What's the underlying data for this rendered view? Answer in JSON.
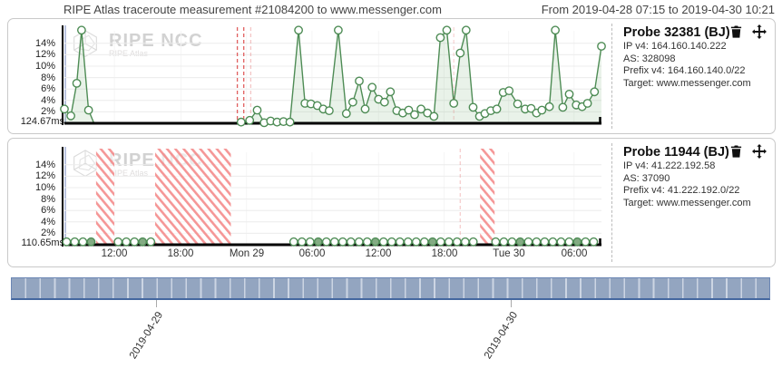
{
  "header": {
    "title": "RIPE Atlas traceroute measurement #21084200 to www.messenger.com",
    "range": "From 2019-04-28 07:15 to 2019-04-30 10:21"
  },
  "watermark": {
    "brand": "RIPE NCC",
    "sub": "RIPE Atlas"
  },
  "colors": {
    "series_green": "#4e8c55",
    "area_green": "#e3f0e3",
    "gap_hatch_red": "#f27d7d",
    "gap_line_red": "#e05f5f",
    "bar_fill": "#93a5c0",
    "bar_separator": "#ccd5e3",
    "bar_border": "#44679f",
    "panel_border": "#c9c9c9"
  },
  "panel_icons": [
    "trash-icon",
    "move-icon"
  ],
  "x_axis": {
    "ticks": [
      {
        "label": "12:00",
        "f": 0.093
      },
      {
        "label": "18:00",
        "f": 0.217
      },
      {
        "label": "Mon 29",
        "f": 0.339
      },
      {
        "label": "06:00",
        "f": 0.461
      },
      {
        "label": "12:00",
        "f": 0.585
      },
      {
        "label": "18:00",
        "f": 0.707
      },
      {
        "label": "Tue 30",
        "f": 0.827
      },
      {
        "label": "06:00",
        "f": 0.949
      }
    ]
  },
  "charts": [
    {
      "probe": {
        "title": "Probe 32381 (BJ)",
        "lines": [
          "IP v4: 164.160.140.222",
          "AS: 328098",
          "Prefix v4: 164.160.140.0/22",
          "Target: www.messenger.com"
        ]
      },
      "baseline_label": "124.67ms",
      "chart_data": {
        "type": "area",
        "series_name": "packet loss %",
        "ylim": [
          0,
          17
        ],
        "y_ticks_pct": [
          2,
          4,
          6,
          8,
          10,
          12,
          14
        ],
        "points": [
          [
            0.0,
            2.5,
            1
          ],
          [
            0.012,
            1.3,
            1
          ],
          [
            0.023,
            7.0,
            1
          ],
          [
            0.032,
            16.3,
            1
          ],
          [
            0.045,
            2.3,
            1
          ],
          [
            0.055,
            0,
            0
          ],
          [
            0.32,
            0,
            0
          ],
          [
            0.329,
            0.2,
            1
          ],
          [
            0.345,
            0.5,
            1
          ],
          [
            0.359,
            2.3,
            1
          ],
          [
            0.372,
            0.1,
            1
          ],
          [
            0.384,
            0.4,
            1
          ],
          [
            0.396,
            0.2,
            1
          ],
          [
            0.408,
            0.3,
            1
          ],
          [
            0.42,
            0.2,
            1
          ],
          [
            0.436,
            16.3,
            1
          ],
          [
            0.448,
            3.5,
            1
          ],
          [
            0.459,
            3.4,
            1
          ],
          [
            0.471,
            3.1,
            1
          ],
          [
            0.482,
            2.5,
            1
          ],
          [
            0.493,
            2.2,
            1
          ],
          [
            0.51,
            16.3,
            1
          ],
          [
            0.525,
            1.7,
            1
          ],
          [
            0.537,
            3.7,
            1
          ],
          [
            0.549,
            7.4,
            1
          ],
          [
            0.56,
            2.5,
            1
          ],
          [
            0.573,
            6.3,
            1
          ],
          [
            0.585,
            4.2,
            1
          ],
          [
            0.596,
            3.7,
            1
          ],
          [
            0.607,
            5.5,
            1
          ],
          [
            0.619,
            2.2,
            1
          ],
          [
            0.63,
            1.8,
            1
          ],
          [
            0.641,
            2.3,
            1
          ],
          [
            0.652,
            1.5,
            1
          ],
          [
            0.664,
            2.5,
            1
          ],
          [
            0.676,
            1.8,
            1
          ],
          [
            0.688,
            1.2,
            1
          ],
          [
            0.7,
            15.0,
            1
          ],
          [
            0.712,
            16.3,
            1
          ],
          [
            0.725,
            3.5,
            1
          ],
          [
            0.737,
            12.3,
            1
          ],
          [
            0.748,
            16.3,
            1
          ],
          [
            0.761,
            2.8,
            1
          ],
          [
            0.773,
            1.2,
            1
          ],
          [
            0.783,
            1.7,
            1
          ],
          [
            0.794,
            2.2,
            1
          ],
          [
            0.805,
            2.5,
            1
          ],
          [
            0.817,
            5.4,
            1
          ],
          [
            0.828,
            5.7,
            1
          ],
          [
            0.844,
            3.4,
            1
          ],
          [
            0.858,
            2.5,
            1
          ],
          [
            0.869,
            2.6,
            1
          ],
          [
            0.879,
            1.8,
            1
          ],
          [
            0.889,
            2.3,
            1
          ],
          [
            0.903,
            2.9,
            1
          ],
          [
            0.914,
            16.3,
            1
          ],
          [
            0.928,
            2.8,
            1
          ],
          [
            0.94,
            5.1,
            1
          ],
          [
            0.953,
            3.2,
            1
          ],
          [
            0.964,
            2.9,
            1
          ],
          [
            0.974,
            3.5,
            1
          ],
          [
            0.987,
            5.5,
            1
          ],
          [
            1.0,
            13.5,
            1
          ]
        ],
        "gap_lines": [
          {
            "f": 0.322,
            "o": 1
          },
          {
            "f": 0.334,
            "o": 1
          },
          {
            "f": 0.347,
            "o": 0.35
          },
          {
            "f": 0.725,
            "o": 0.25
          }
        ],
        "hatches": []
      }
    },
    {
      "probe": {
        "title": "Probe 11944 (BJ)",
        "lines": [
          "IP v4: 41.222.192.58",
          "AS: 37090",
          "Prefix v4: 41.222.192.0/22",
          "Target: www.messenger.com"
        ]
      },
      "baseline_label": "110.65ms",
      "chart_data": {
        "type": "scatter",
        "series_name": "packet loss %",
        "ylim": [
          0,
          17
        ],
        "y_ticks_pct": [
          2,
          4,
          6,
          8,
          10,
          12,
          14
        ],
        "value": 0.5,
        "step": 0.0152,
        "filled_interval": 7,
        "circle_runs": [
          {
            "from": 0.004,
            "to": 0.058
          },
          {
            "from": 0.1,
            "to": 0.163
          },
          {
            "from": 0.427,
            "to": 0.764
          },
          {
            "from": 0.803,
            "to": 0.998
          }
        ],
        "hatches": [
          [
            0.059,
            0.093
          ],
          [
            0.169,
            0.31
          ],
          [
            0.774,
            0.801
          ]
        ],
        "gap_lines": [
          {
            "f": 0.737,
            "o": 0.3
          }
        ]
      }
    }
  ],
  "overview_bar": {
    "segment_count": 52,
    "date_ticks": [
      {
        "label": "2019-04-29",
        "x": 172
      },
      {
        "label": "2019-04-30",
        "x": 563
      }
    ]
  }
}
